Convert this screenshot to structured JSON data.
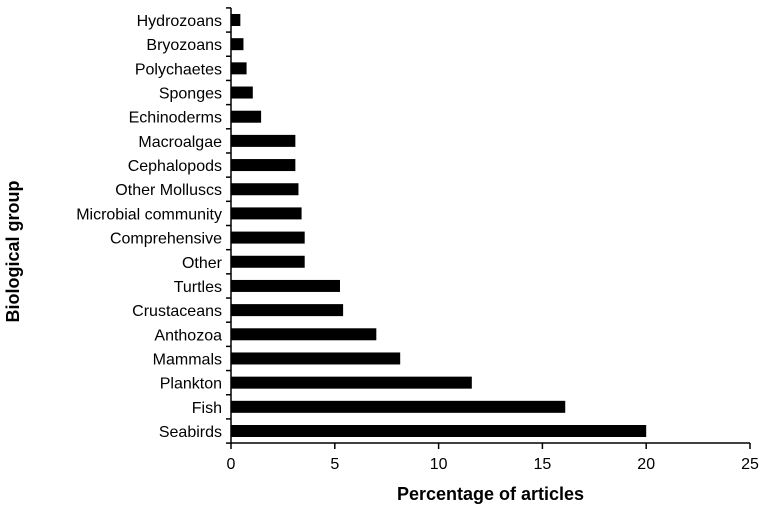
{
  "chart_data": {
    "type": "bar",
    "orientation": "horizontal",
    "title": "",
    "xlabel": "Percentage of articles",
    "ylabel": "Biological group",
    "categories": [
      "Hydrozoans",
      "Bryozoans",
      "Polychaetes",
      "Sponges",
      "Echinoderms",
      "Macroalgae",
      "Cephalopods",
      "Other Molluscs",
      "Microbial community",
      "Comprehensive",
      "Other",
      "Turtles",
      "Crustaceans",
      "Anthozoa",
      "Mammals",
      "Plankton",
      "Fish",
      "Seabirds"
    ],
    "values": [
      0.45,
      0.6,
      0.75,
      1.05,
      1.45,
      3.1,
      3.1,
      3.25,
      3.4,
      3.55,
      3.55,
      5.25,
      5.4,
      7.0,
      8.15,
      11.6,
      16.1,
      20.0
    ],
    "xlim": [
      0,
      25
    ],
    "xticks": [
      "0",
      "5",
      "10",
      "15",
      "20",
      "25"
    ],
    "grid": false,
    "bar_color": "#000000"
  }
}
